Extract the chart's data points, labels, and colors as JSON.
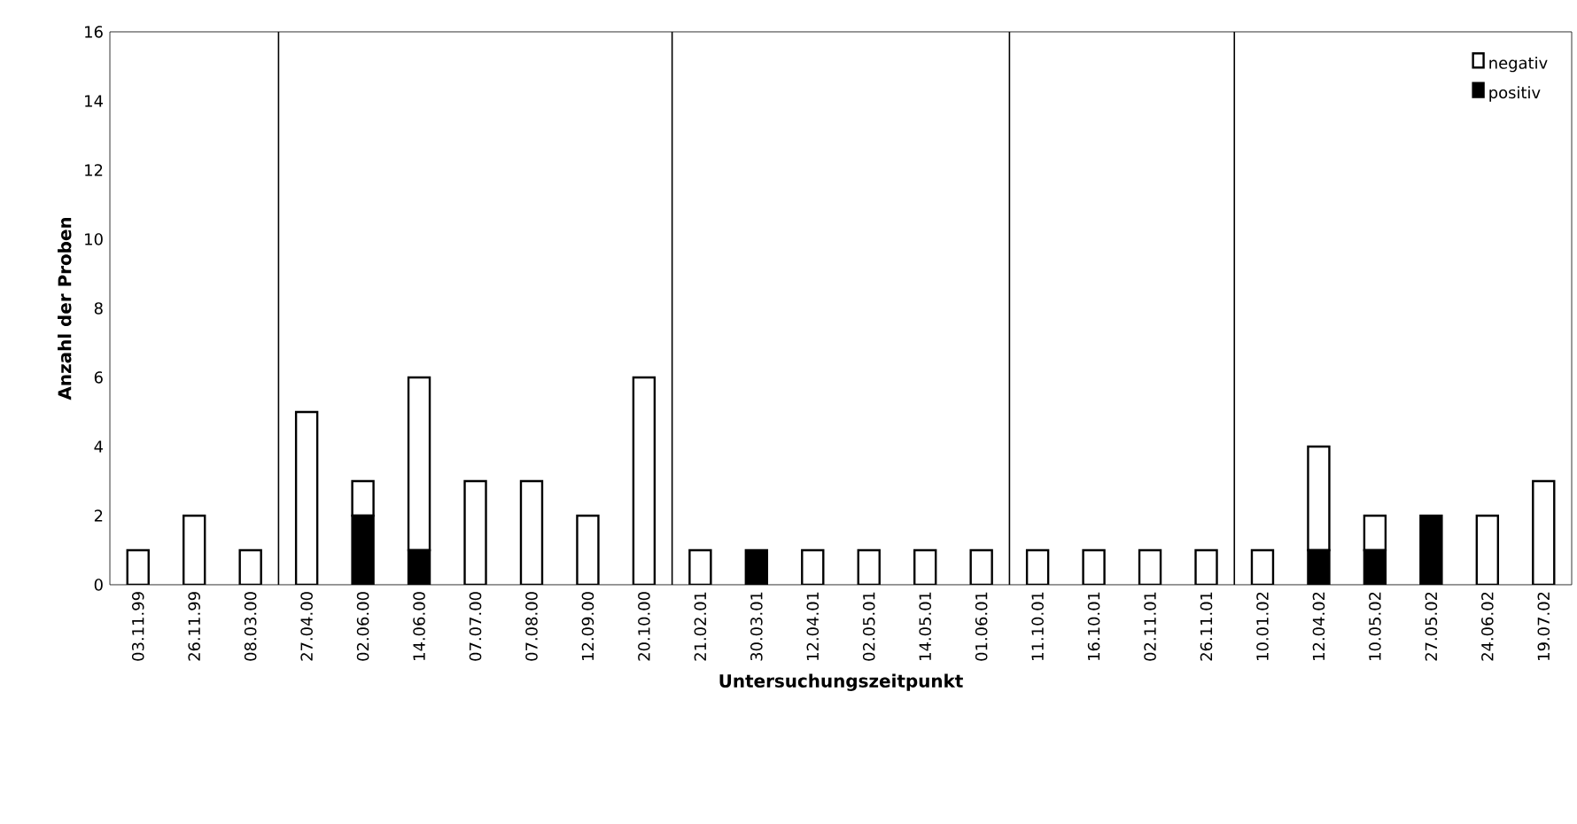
{
  "chart_data": {
    "type": "bar",
    "stacked": true,
    "xlabel": "Untersuchungszeitpunkt",
    "ylabel": "Anzahl der Proben",
    "categories": [
      "03.11.99",
      "26.11.99",
      "08.03.00",
      "27.04.00",
      "02.06.00",
      "14.06.00",
      "07.07.00",
      "07.08.00",
      "12.09.00",
      "20.10.00",
      "21.02.01",
      "30.03.01",
      "12.04.01",
      "02.05.01",
      "14.05.01",
      "01.06.01",
      "11.10.01",
      "16.10.01",
      "02.11.01",
      "26.11.01",
      "10.01.02",
      "12.04.02",
      "10.05.02",
      "27.05.02",
      "24.06.02",
      "19.07.02"
    ],
    "series": [
      {
        "name": "positiv",
        "color": "#000000",
        "values": [
          0,
          0,
          0,
          0,
          2,
          1,
          0,
          0,
          0,
          0,
          0,
          1,
          0,
          0,
          0,
          0,
          0,
          0,
          0,
          0,
          0,
          1,
          1,
          2,
          0,
          0
        ]
      },
      {
        "name": "negativ",
        "color": "#ffffff",
        "values": [
          1,
          2,
          1,
          5,
          1,
          5,
          3,
          3,
          2,
          6,
          1,
          0,
          1,
          1,
          1,
          1,
          1,
          1,
          1,
          1,
          1,
          3,
          1,
          0,
          2,
          3
        ]
      }
    ],
    "ylim": [
      0,
      16
    ],
    "yticks": [
      0,
      2,
      4,
      6,
      8,
      10,
      12,
      14,
      16
    ],
    "legend": "top right"
  }
}
